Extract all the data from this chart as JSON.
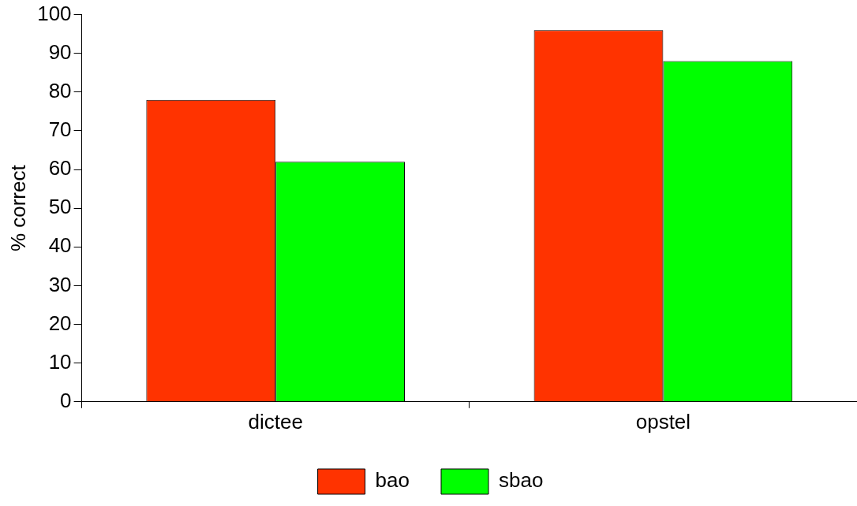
{
  "chart_data": {
    "type": "bar",
    "ylabel": "% correct",
    "categories": [
      "dictee",
      "opstel"
    ],
    "series": [
      {
        "name": "bao",
        "color": "#ff3300",
        "values": [
          78,
          96
        ]
      },
      {
        "name": "sbao",
        "color": "#00ff00",
        "values": [
          62,
          88
        ]
      }
    ],
    "ylim": [
      0,
      100
    ],
    "yticks": [
      0,
      10,
      20,
      30,
      40,
      50,
      60,
      70,
      80,
      90,
      100
    ],
    "legend": "bottom"
  }
}
